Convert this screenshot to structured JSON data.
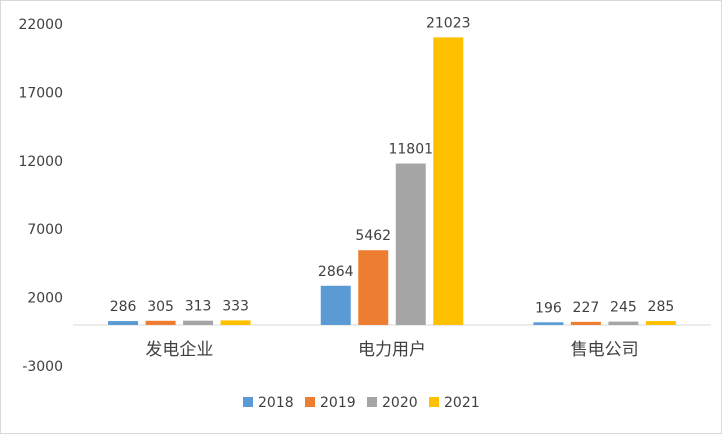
{
  "chart_data": {
    "type": "bar",
    "categories": [
      "发电企业",
      "电力用户",
      "售电公司"
    ],
    "series": [
      {
        "name": "2018",
        "values": [
          286,
          2864,
          196
        ],
        "color": "#5b9bd5"
      },
      {
        "name": "2019",
        "values": [
          305,
          5462,
          227
        ],
        "color": "#ed7d31"
      },
      {
        "name": "2020",
        "values": [
          313,
          11801,
          245
        ],
        "color": "#a5a5a5"
      },
      {
        "name": "2021",
        "values": [
          333,
          21023,
          285
        ],
        "color": "#ffc000"
      }
    ],
    "yticks": [
      22000,
      17000,
      12000,
      7000,
      2000,
      -3000
    ],
    "ylim": [
      -3000,
      22000
    ],
    "legend_position": "bottom",
    "title": "",
    "xlabel": "",
    "ylabel": ""
  }
}
